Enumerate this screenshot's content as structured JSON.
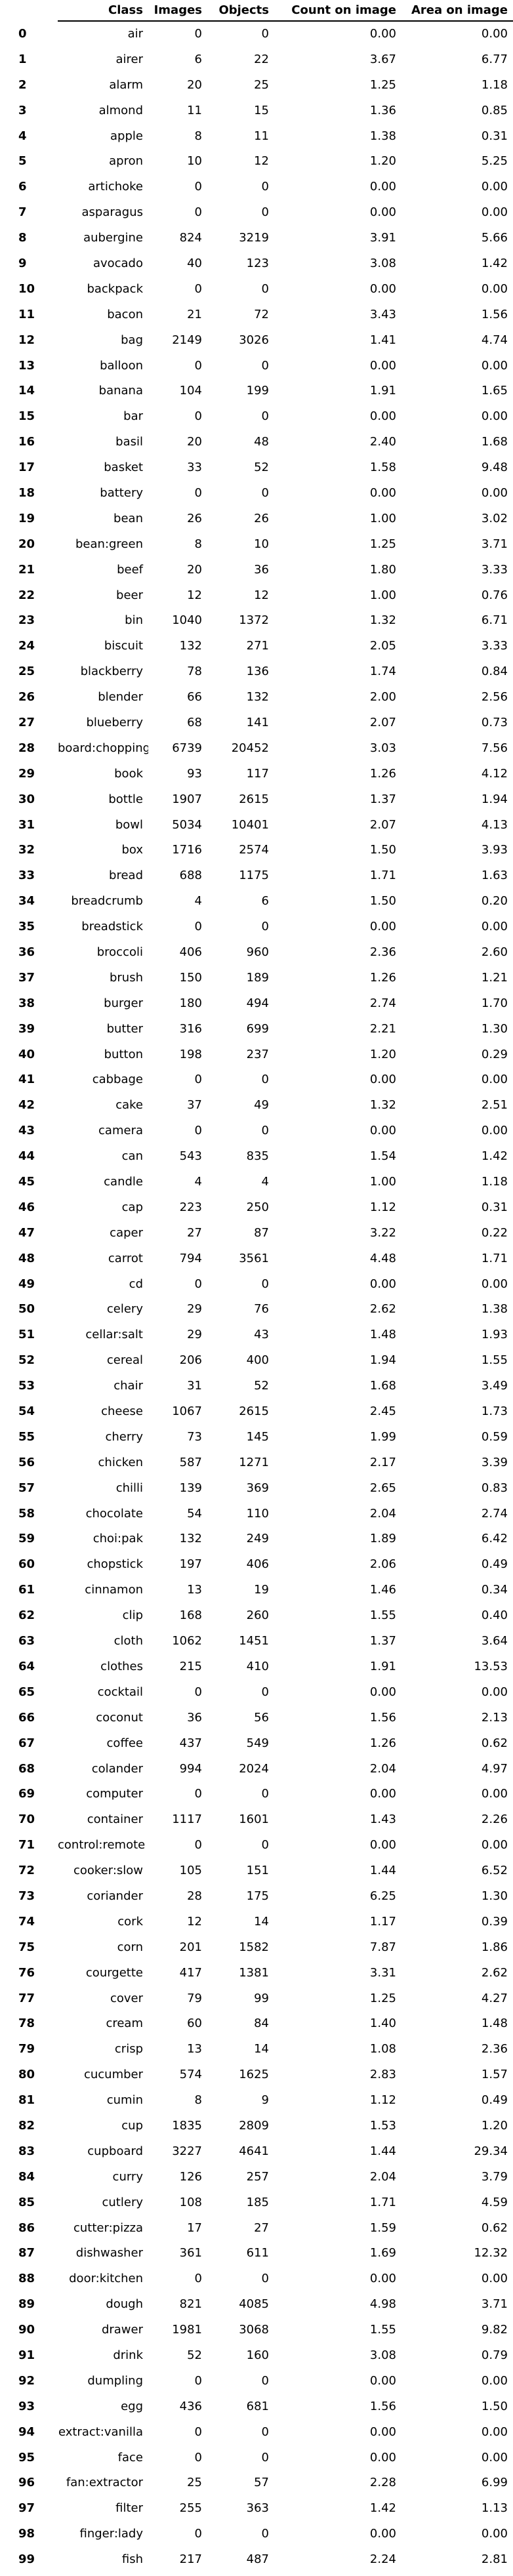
{
  "table": {
    "headers": [
      "",
      "Class",
      "Images",
      "Objects",
      "Count on image",
      "Area on image"
    ],
    "rows": [
      [
        "0",
        "air",
        "0",
        "0",
        "0.00",
        "0.00"
      ],
      [
        "1",
        "airer",
        "6",
        "22",
        "3.67",
        "6.77"
      ],
      [
        "2",
        "alarm",
        "20",
        "25",
        "1.25",
        "1.18"
      ],
      [
        "3",
        "almond",
        "11",
        "15",
        "1.36",
        "0.85"
      ],
      [
        "4",
        "apple",
        "8",
        "11",
        "1.38",
        "0.31"
      ],
      [
        "5",
        "apron",
        "10",
        "12",
        "1.20",
        "5.25"
      ],
      [
        "6",
        "artichoke",
        "0",
        "0",
        "0.00",
        "0.00"
      ],
      [
        "7",
        "asparagus",
        "0",
        "0",
        "0.00",
        "0.00"
      ],
      [
        "8",
        "aubergine",
        "824",
        "3219",
        "3.91",
        "5.66"
      ],
      [
        "9",
        "avocado",
        "40",
        "123",
        "3.08",
        "1.42"
      ],
      [
        "10",
        "backpack",
        "0",
        "0",
        "0.00",
        "0.00"
      ],
      [
        "11",
        "bacon",
        "21",
        "72",
        "3.43",
        "1.56"
      ],
      [
        "12",
        "bag",
        "2149",
        "3026",
        "1.41",
        "4.74"
      ],
      [
        "13",
        "balloon",
        "0",
        "0",
        "0.00",
        "0.00"
      ],
      [
        "14",
        "banana",
        "104",
        "199",
        "1.91",
        "1.65"
      ],
      [
        "15",
        "bar",
        "0",
        "0",
        "0.00",
        "0.00"
      ],
      [
        "16",
        "basil",
        "20",
        "48",
        "2.40",
        "1.68"
      ],
      [
        "17",
        "basket",
        "33",
        "52",
        "1.58",
        "9.48"
      ],
      [
        "18",
        "battery",
        "0",
        "0",
        "0.00",
        "0.00"
      ],
      [
        "19",
        "bean",
        "26",
        "26",
        "1.00",
        "3.02"
      ],
      [
        "20",
        "bean:green",
        "8",
        "10",
        "1.25",
        "3.71"
      ],
      [
        "21",
        "beef",
        "20",
        "36",
        "1.80",
        "3.33"
      ],
      [
        "22",
        "beer",
        "12",
        "12",
        "1.00",
        "0.76"
      ],
      [
        "23",
        "bin",
        "1040",
        "1372",
        "1.32",
        "6.71"
      ],
      [
        "24",
        "biscuit",
        "132",
        "271",
        "2.05",
        "3.33"
      ],
      [
        "25",
        "blackberry",
        "78",
        "136",
        "1.74",
        "0.84"
      ],
      [
        "26",
        "blender",
        "66",
        "132",
        "2.00",
        "2.56"
      ],
      [
        "27",
        "blueberry",
        "68",
        "141",
        "2.07",
        "0.73"
      ],
      [
        "28",
        "board:chopping",
        "6739",
        "20452",
        "3.03",
        "7.56"
      ],
      [
        "29",
        "book",
        "93",
        "117",
        "1.26",
        "4.12"
      ],
      [
        "30",
        "bottle",
        "1907",
        "2615",
        "1.37",
        "1.94"
      ],
      [
        "31",
        "bowl",
        "5034",
        "10401",
        "2.07",
        "4.13"
      ],
      [
        "32",
        "box",
        "1716",
        "2574",
        "1.50",
        "3.93"
      ],
      [
        "33",
        "bread",
        "688",
        "1175",
        "1.71",
        "1.63"
      ],
      [
        "34",
        "breadcrumb",
        "4",
        "6",
        "1.50",
        "0.20"
      ],
      [
        "35",
        "breadstick",
        "0",
        "0",
        "0.00",
        "0.00"
      ],
      [
        "36",
        "broccoli",
        "406",
        "960",
        "2.36",
        "2.60"
      ],
      [
        "37",
        "brush",
        "150",
        "189",
        "1.26",
        "1.21"
      ],
      [
        "38",
        "burger",
        "180",
        "494",
        "2.74",
        "1.70"
      ],
      [
        "39",
        "butter",
        "316",
        "699",
        "2.21",
        "1.30"
      ],
      [
        "40",
        "button",
        "198",
        "237",
        "1.20",
        "0.29"
      ],
      [
        "41",
        "cabbage",
        "0",
        "0",
        "0.00",
        "0.00"
      ],
      [
        "42",
        "cake",
        "37",
        "49",
        "1.32",
        "2.51"
      ],
      [
        "43",
        "camera",
        "0",
        "0",
        "0.00",
        "0.00"
      ],
      [
        "44",
        "can",
        "543",
        "835",
        "1.54",
        "1.42"
      ],
      [
        "45",
        "candle",
        "4",
        "4",
        "1.00",
        "1.18"
      ],
      [
        "46",
        "cap",
        "223",
        "250",
        "1.12",
        "0.31"
      ],
      [
        "47",
        "caper",
        "27",
        "87",
        "3.22",
        "0.22"
      ],
      [
        "48",
        "carrot",
        "794",
        "3561",
        "4.48",
        "1.71"
      ],
      [
        "49",
        "cd",
        "0",
        "0",
        "0.00",
        "0.00"
      ],
      [
        "50",
        "celery",
        "29",
        "76",
        "2.62",
        "1.38"
      ],
      [
        "51",
        "cellar:salt",
        "29",
        "43",
        "1.48",
        "1.93"
      ],
      [
        "52",
        "cereal",
        "206",
        "400",
        "1.94",
        "1.55"
      ],
      [
        "53",
        "chair",
        "31",
        "52",
        "1.68",
        "3.49"
      ],
      [
        "54",
        "cheese",
        "1067",
        "2615",
        "2.45",
        "1.73"
      ],
      [
        "55",
        "cherry",
        "73",
        "145",
        "1.99",
        "0.59"
      ],
      [
        "56",
        "chicken",
        "587",
        "1271",
        "2.17",
        "3.39"
      ],
      [
        "57",
        "chilli",
        "139",
        "369",
        "2.65",
        "0.83"
      ],
      [
        "58",
        "chocolate",
        "54",
        "110",
        "2.04",
        "2.74"
      ],
      [
        "59",
        "choi:pak",
        "132",
        "249",
        "1.89",
        "6.42"
      ],
      [
        "60",
        "chopstick",
        "197",
        "406",
        "2.06",
        "0.49"
      ],
      [
        "61",
        "cinnamon",
        "13",
        "19",
        "1.46",
        "0.34"
      ],
      [
        "62",
        "clip",
        "168",
        "260",
        "1.55",
        "0.40"
      ],
      [
        "63",
        "cloth",
        "1062",
        "1451",
        "1.37",
        "3.64"
      ],
      [
        "64",
        "clothes",
        "215",
        "410",
        "1.91",
        "13.53"
      ],
      [
        "65",
        "cocktail",
        "0",
        "0",
        "0.00",
        "0.00"
      ],
      [
        "66",
        "coconut",
        "36",
        "56",
        "1.56",
        "2.13"
      ],
      [
        "67",
        "coffee",
        "437",
        "549",
        "1.26",
        "0.62"
      ],
      [
        "68",
        "colander",
        "994",
        "2024",
        "2.04",
        "4.97"
      ],
      [
        "69",
        "computer",
        "0",
        "0",
        "0.00",
        "0.00"
      ],
      [
        "70",
        "container",
        "1117",
        "1601",
        "1.43",
        "2.26"
      ],
      [
        "71",
        "control:remote",
        "0",
        "0",
        "0.00",
        "0.00"
      ],
      [
        "72",
        "cooker:slow",
        "105",
        "151",
        "1.44",
        "6.52"
      ],
      [
        "73",
        "coriander",
        "28",
        "175",
        "6.25",
        "1.30"
      ],
      [
        "74",
        "cork",
        "12",
        "14",
        "1.17",
        "0.39"
      ],
      [
        "75",
        "corn",
        "201",
        "1582",
        "7.87",
        "1.86"
      ],
      [
        "76",
        "courgette",
        "417",
        "1381",
        "3.31",
        "2.62"
      ],
      [
        "77",
        "cover",
        "79",
        "99",
        "1.25",
        "4.27"
      ],
      [
        "78",
        "cream",
        "60",
        "84",
        "1.40",
        "1.48"
      ],
      [
        "79",
        "crisp",
        "13",
        "14",
        "1.08",
        "2.36"
      ],
      [
        "80",
        "cucumber",
        "574",
        "1625",
        "2.83",
        "1.57"
      ],
      [
        "81",
        "cumin",
        "8",
        "9",
        "1.12",
        "0.49"
      ],
      [
        "82",
        "cup",
        "1835",
        "2809",
        "1.53",
        "1.20"
      ],
      [
        "83",
        "cupboard",
        "3227",
        "4641",
        "1.44",
        "29.34"
      ],
      [
        "84",
        "curry",
        "126",
        "257",
        "2.04",
        "3.79"
      ],
      [
        "85",
        "cutlery",
        "108",
        "185",
        "1.71",
        "4.59"
      ],
      [
        "86",
        "cutter:pizza",
        "17",
        "27",
        "1.59",
        "0.62"
      ],
      [
        "87",
        "dishwasher",
        "361",
        "611",
        "1.69",
        "12.32"
      ],
      [
        "88",
        "door:kitchen",
        "0",
        "0",
        "0.00",
        "0.00"
      ],
      [
        "89",
        "dough",
        "821",
        "4085",
        "4.98",
        "3.71"
      ],
      [
        "90",
        "drawer",
        "1981",
        "3068",
        "1.55",
        "9.82"
      ],
      [
        "91",
        "drink",
        "52",
        "160",
        "3.08",
        "0.79"
      ],
      [
        "92",
        "dumpling",
        "0",
        "0",
        "0.00",
        "0.00"
      ],
      [
        "93",
        "egg",
        "436",
        "681",
        "1.56",
        "1.50"
      ],
      [
        "94",
        "extract:vanilla",
        "0",
        "0",
        "0.00",
        "0.00"
      ],
      [
        "95",
        "face",
        "0",
        "0",
        "0.00",
        "0.00"
      ],
      [
        "96",
        "fan:extractor",
        "25",
        "57",
        "2.28",
        "6.99"
      ],
      [
        "97",
        "filter",
        "255",
        "363",
        "1.42",
        "1.13"
      ],
      [
        "98",
        "finger:lady",
        "0",
        "0",
        "0.00",
        "0.00"
      ],
      [
        "99",
        "fish",
        "217",
        "487",
        "2.24",
        "2.81"
      ]
    ]
  }
}
